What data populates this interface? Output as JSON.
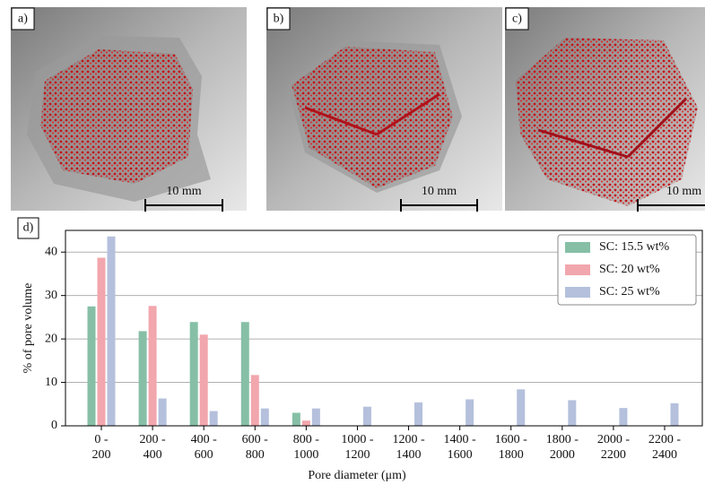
{
  "panels": [
    {
      "label": "a)",
      "scale_bar": "10 mm"
    },
    {
      "label": "b)",
      "scale_bar": "10 mm"
    },
    {
      "label": "c)",
      "scale_bar": "10 mm"
    }
  ],
  "chart_data": {
    "type": "bar",
    "panel_label": "d)",
    "xlabel": "Pore diameter (μm)",
    "ylabel": "% of pore volume",
    "categories": [
      "0 -\n200",
      "200 -\n400",
      "400 -\n600",
      "600 -\n800",
      "800 -\n1000",
      "1000 -\n1200",
      "1200 -\n1400",
      "1400 -\n1600",
      "1600 -\n1800",
      "1800 -\n2000",
      "2000 -\n2200",
      "2200 -\n2400"
    ],
    "series": [
      {
        "name": "SC: 15.5 wt%",
        "color": "#86bfa6",
        "values": [
          27.5,
          21.8,
          23.9,
          23.9,
          3.0,
          0,
          0,
          0,
          0,
          0,
          0,
          0
        ]
      },
      {
        "name": "SC: 20 wt%",
        "color": "#f2a6ad",
        "values": [
          38.7,
          27.6,
          21.0,
          11.7,
          1.2,
          0,
          0,
          0,
          0,
          0,
          0,
          0
        ]
      },
      {
        "name": "SC: 25 wt%",
        "color": "#b4c0dc",
        "values": [
          43.6,
          6.3,
          3.4,
          4.0,
          4.0,
          4.4,
          5.4,
          6.1,
          8.4,
          5.9,
          4.1,
          5.2
        ]
      }
    ],
    "ylim": [
      0,
      45
    ],
    "yticks": [
      0,
      10,
      20,
      30,
      40
    ],
    "grid": true,
    "legend": "upper-right"
  }
}
